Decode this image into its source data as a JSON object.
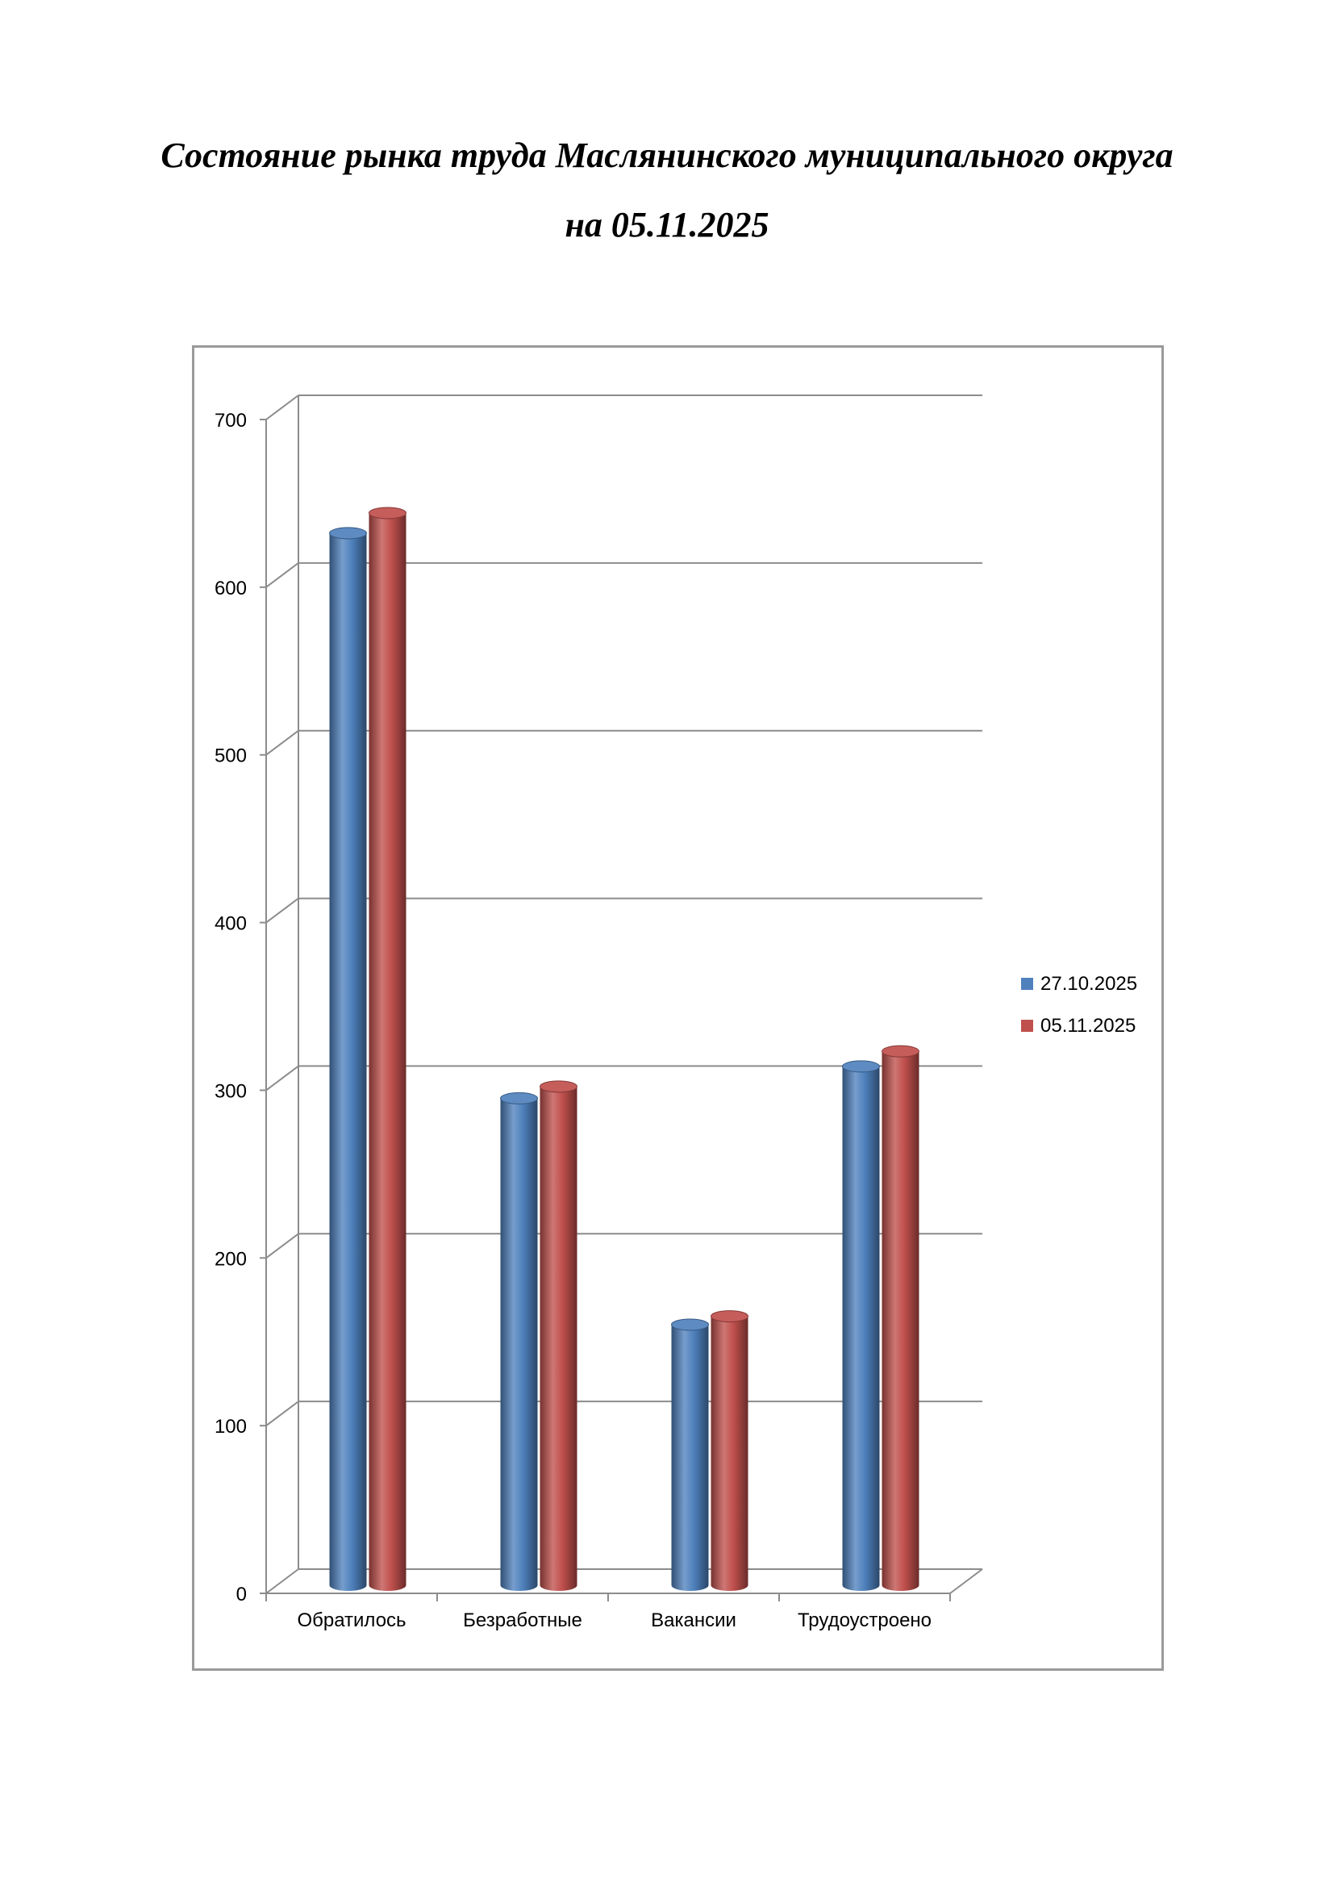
{
  "page": {
    "title_line1": "Состояние рынка труда Маслянинского муниципального округа",
    "title_line2": "на 05.11.2025"
  },
  "chart_data": {
    "type": "bar",
    "style": "3d-cylinder",
    "categories": [
      "Обратилось",
      "Безработные",
      "Вакансии",
      "Трудоустроено"
    ],
    "series": [
      {
        "name": "27.10.2025",
        "color": "#4f81bd",
        "values": [
          625,
          288,
          153,
          307
        ]
      },
      {
        "name": "05.11.2025",
        "color": "#c0504d",
        "values": [
          637,
          295,
          158,
          316
        ]
      }
    ],
    "ylim": [
      0,
      700
    ],
    "yticks": [
      0,
      100,
      200,
      300,
      400,
      500,
      600,
      700
    ],
    "grid": true,
    "legend_position": "right",
    "title": "",
    "xlabel": "",
    "ylabel": ""
  }
}
